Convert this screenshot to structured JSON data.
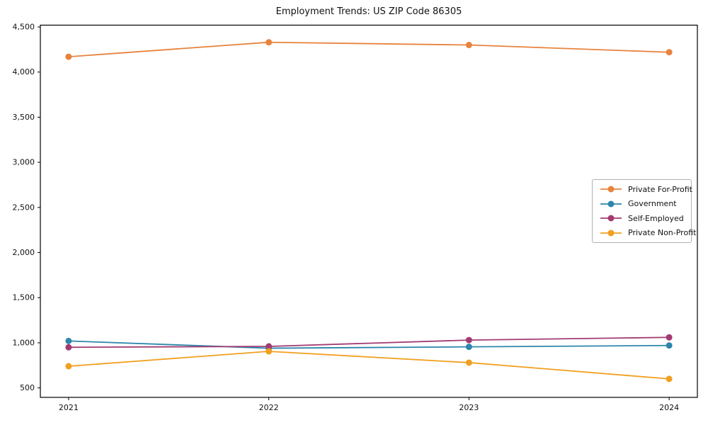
{
  "chart_data": {
    "type": "line",
    "title": "Employment Trends: US ZIP Code 86305",
    "x": [
      2021,
      2022,
      2023,
      2024
    ],
    "x_tick_labels": [
      "2021",
      "2022",
      "2023",
      "2024"
    ],
    "series": [
      {
        "name": "Private For-Profit",
        "color": "#E8833E",
        "values": [
          4170,
          4330,
          4300,
          4220
        ]
      },
      {
        "name": "Government",
        "color": "#2E86AB",
        "values": [
          1020,
          940,
          955,
          970
        ]
      },
      {
        "name": "Self-Employed",
        "color": "#A23B72",
        "values": [
          950,
          960,
          1030,
          1060
        ]
      },
      {
        "name": "Private Non-Profit",
        "color": "#F0A020",
        "values": [
          740,
          905,
          780,
          600
        ]
      }
    ],
    "xlabel": "",
    "ylabel": "",
    "ylim": [
      395,
      4520
    ],
    "yticks": [
      500,
      1000,
      1500,
      2000,
      2500,
      3000,
      3500,
      4000,
      4500
    ],
    "ytick_labels": [
      "500",
      "1,000",
      "1,500",
      "2,000",
      "2,500",
      "3,000",
      "3,500",
      "4,000",
      "4,500"
    ],
    "grid": false,
    "legend_position": "center right",
    "marker": "o",
    "axis_color": "#000000",
    "background_color": "#ffffff"
  }
}
